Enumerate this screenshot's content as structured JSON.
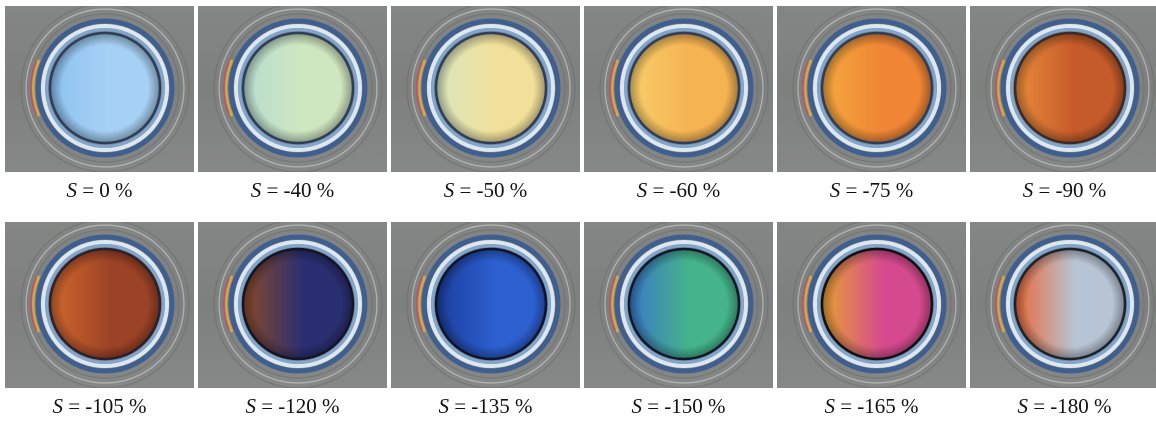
{
  "panels": [
    {
      "variable": "S",
      "value": "= 0 %",
      "fill": "#a7d1f4",
      "fill2": "#8cc2f0",
      "edge": "#2e3d5c"
    },
    {
      "variable": "S",
      "value": "= -40 %",
      "fill": "#cfe7c0",
      "fill2": "#b8dcd0",
      "edge": "#2e3d5c"
    },
    {
      "variable": "S",
      "value": "= -50 %",
      "fill": "#f2e09a",
      "fill2": "#d8e6bf",
      "edge": "#2e3d5c"
    },
    {
      "variable": "S",
      "value": "= -60 %",
      "fill": "#f5b352",
      "fill2": "#f8cf6a",
      "edge": "#2e3d5c"
    },
    {
      "variable": "S",
      "value": "= -75 %",
      "fill": "#ef8535",
      "fill2": "#f5a83e",
      "edge": "#2e3d5c"
    },
    {
      "variable": "S",
      "value": "= -90 %",
      "fill": "#c55a2a",
      "fill2": "#e88a3a",
      "edge": "#3a2a28"
    },
    {
      "variable": "S",
      "value": "= -105 %",
      "fill": "#9c4226",
      "fill2": "#d0682c",
      "edge": "#2a2030"
    },
    {
      "variable": "S",
      "value": "= -120 %",
      "fill": "#2a2f72",
      "fill2": "#8a4a28",
      "edge": "#12142a"
    },
    {
      "variable": "S",
      "value": "= -135 %",
      "fill": "#2c5fd0",
      "fill2": "#1c3e9e",
      "edge": "#0c1430"
    },
    {
      "variable": "S",
      "value": "= -150 %",
      "fill": "#45b48a",
      "fill2": "#3a78c8",
      "edge": "#101830"
    },
    {
      "variable": "S",
      "value": "= -165 %",
      "fill": "#d54a8e",
      "fill2": "#e8a034",
      "edge": "#101018"
    },
    {
      "variable": "S",
      "value": "= -180 %",
      "fill": "#b7c4d4",
      "fill2": "#e86a3a",
      "edge": "#1a2430"
    }
  ]
}
